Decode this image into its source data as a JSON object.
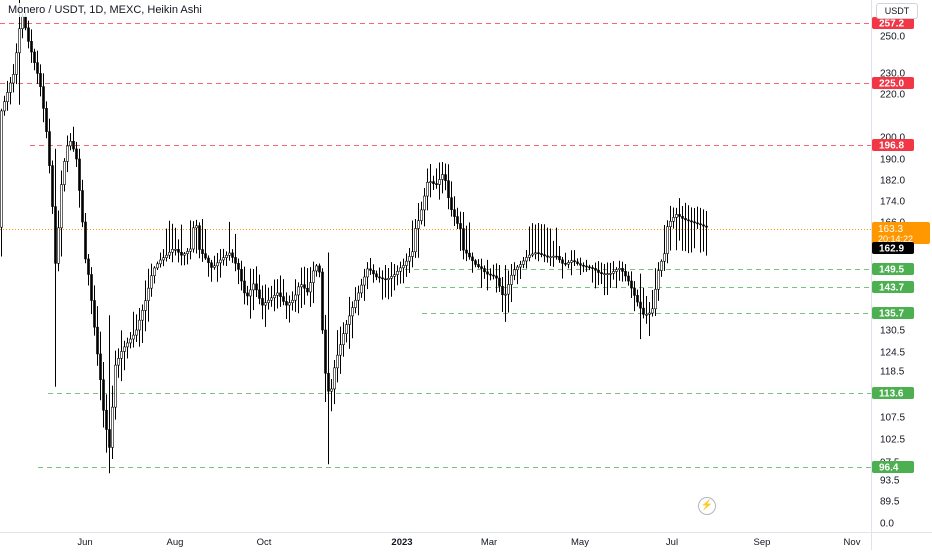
{
  "header": {
    "title": "Monero / USDT, 1D, MEXC, Heikin Ashi",
    "currency_button": "USDT"
  },
  "chart_data": {
    "type": "candlestick",
    "symbol": "Monero / USDT",
    "interval": "1D",
    "exchange": "MEXC",
    "style": "Heikin Ashi",
    "y_axis": {
      "ticks": [
        "250.0",
        "230.0",
        "220.0",
        "200.0",
        "190.0",
        "182.0",
        "174.0",
        "166.0",
        "130.5",
        "124.5",
        "118.5",
        "107.5",
        "102.5",
        "97.5",
        "93.5",
        "89.5",
        "0.0"
      ]
    },
    "x_axis": {
      "ticks": [
        "Jun",
        "Aug",
        "Oct",
        "2023",
        "Mar",
        "May",
        "Jul",
        "Sep",
        "Nov"
      ]
    },
    "resistance_levels": [
      257.2,
      225.0,
      196.8
    ],
    "support_levels": [
      149.5,
      143.7,
      135.7,
      113.6,
      96.4
    ],
    "resistance_labels": [
      "257.2",
      "225.0",
      "196.8"
    ],
    "support_labels": [
      "149.5",
      "143.7",
      "135.7",
      "113.6",
      "96.4"
    ],
    "last_price": {
      "value": "163.3",
      "countdown": "20:14:22"
    },
    "prev_close_label": "162.9",
    "colors": {
      "resistance": "#f23645",
      "support": "#4caf50",
      "last_price": "#ff9800",
      "candle": "#000000",
      "prev_close": "#000000"
    },
    "legend": "none",
    "grid": false
  }
}
